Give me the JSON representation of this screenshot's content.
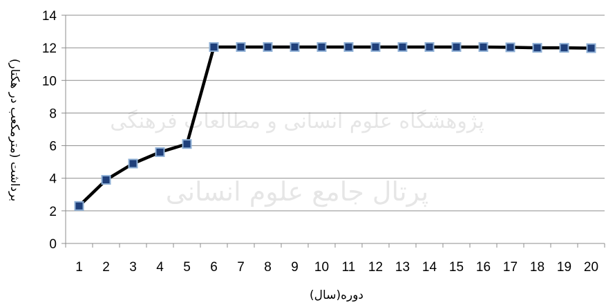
{
  "chart_data": {
    "type": "line",
    "title": "",
    "xlabel": "دوره(سال)",
    "ylabel": "برداشت (مترمکعب در هکتار)",
    "categories": [
      "1",
      "2",
      "3",
      "4",
      "5",
      "6",
      "7",
      "8",
      "9",
      "10",
      "11",
      "12",
      "13",
      "14",
      "15",
      "16",
      "17",
      "18",
      "19",
      "20"
    ],
    "series": [
      {
        "values": [
          2.3,
          3.9,
          4.9,
          5.6,
          6.1,
          12.05,
          12.05,
          12.05,
          12.05,
          12.05,
          12.05,
          12.05,
          12.05,
          12.05,
          12.05,
          12.05,
          12.03,
          12.0,
          12.0,
          11.98
        ]
      }
    ],
    "ylim": [
      0,
      14
    ],
    "yticks": [
      0,
      2,
      4,
      6,
      8,
      10,
      12,
      14
    ],
    "grid": true,
    "legend": "none",
    "colors": {
      "line": "#000000",
      "marker_fill": "#1f3f7a",
      "marker_stroke": "#8fb0d6",
      "grid": "#8c8c8c",
      "axis": "#8c8c8c"
    }
  },
  "watermark": {
    "line1": "پژوهشگاه علوم انسانی و مطالعات فرهنگی",
    "line2": "پرتال جامع علوم انسانی"
  }
}
